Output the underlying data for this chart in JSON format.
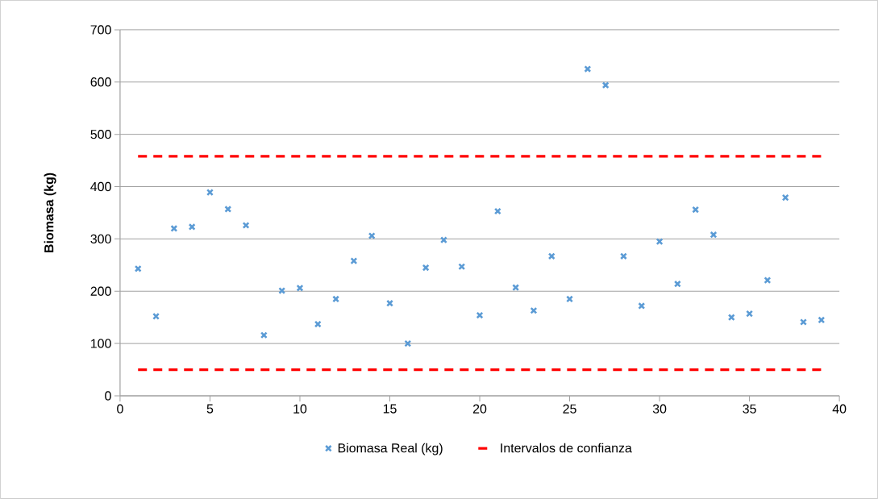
{
  "chart_data": {
    "type": "scatter",
    "ylabel": "Biomasa (kg)",
    "xlim": [
      0,
      40
    ],
    "xticks": [
      0,
      5,
      10,
      15,
      20,
      25,
      30,
      35,
      40
    ],
    "ylim": [
      0,
      700
    ],
    "yticks": [
      0,
      100,
      200,
      300,
      400,
      500,
      600,
      700
    ],
    "grid": "y",
    "legend": "bottom",
    "series": [
      {
        "name": "Biomasa Real (kg)",
        "color": "#5b9bd5",
        "marker": "cross",
        "x": [
          1,
          2,
          3,
          4,
          5,
          6,
          7,
          8,
          9,
          10,
          11,
          12,
          13,
          14,
          15,
          16,
          17,
          18,
          19,
          20,
          21,
          22,
          23,
          24,
          25,
          26,
          27,
          28,
          29,
          30,
          31,
          32,
          33,
          34,
          35,
          36,
          37,
          38,
          39
        ],
        "values": [
          243,
          152,
          320,
          323,
          389,
          357,
          326,
          116,
          201,
          206,
          137,
          185,
          258,
          306,
          177,
          100,
          245,
          298,
          247,
          154,
          353,
          207,
          163,
          267,
          185,
          625,
          594,
          267,
          172,
          295,
          214,
          356,
          308,
          150,
          157,
          221,
          379,
          141,
          145
        ]
      },
      {
        "name": "Intervalos de confianza",
        "type": "line",
        "color": "#ff0000",
        "marker": "none",
        "line_style": "dashed",
        "x": [
          1,
          39
        ],
        "values": [
          458,
          458
        ]
      },
      {
        "type": "line",
        "color": "#ff0000",
        "marker": "none",
        "line_style": "dashed",
        "x": [
          1,
          39
        ],
        "values": [
          50,
          50
        ]
      }
    ]
  }
}
